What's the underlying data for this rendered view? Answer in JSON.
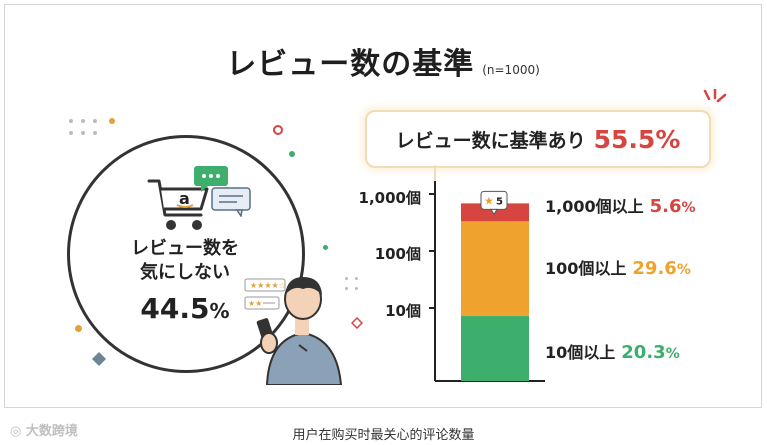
{
  "title": "レビュー数の基準",
  "sample": "(n=1000)",
  "circle": {
    "line1": "レビュー数を",
    "line2": "気にしない",
    "value": "44.5",
    "unit": "%"
  },
  "banner": {
    "text": "レビュー数に基準あり",
    "value": "55.5%"
  },
  "cart_letter": "a",
  "badge_value": "5",
  "caption": "用户在购买时最关心的评论数量",
  "watermark": "大数跨境",
  "colors": {
    "red": "#d6453f",
    "orange": "#f0a22e",
    "green": "#3dae6b",
    "dark": "#222222"
  },
  "chart_data": {
    "type": "bar",
    "stacked": true,
    "title": "レビュー数の基準",
    "y_ticks": [
      "1,000個",
      "100個",
      "10個"
    ],
    "series": [
      {
        "name": "10個以上",
        "value": 20.3,
        "label": "20.3",
        "color": "#3dae6b"
      },
      {
        "name": "100個以上",
        "value": 29.6,
        "label": "29.6",
        "color": "#f0a22e"
      },
      {
        "name": "1,000個以上",
        "value": 5.6,
        "label": "5.6",
        "color": "#d6453f"
      }
    ],
    "total": 55.5,
    "unit": "%"
  }
}
